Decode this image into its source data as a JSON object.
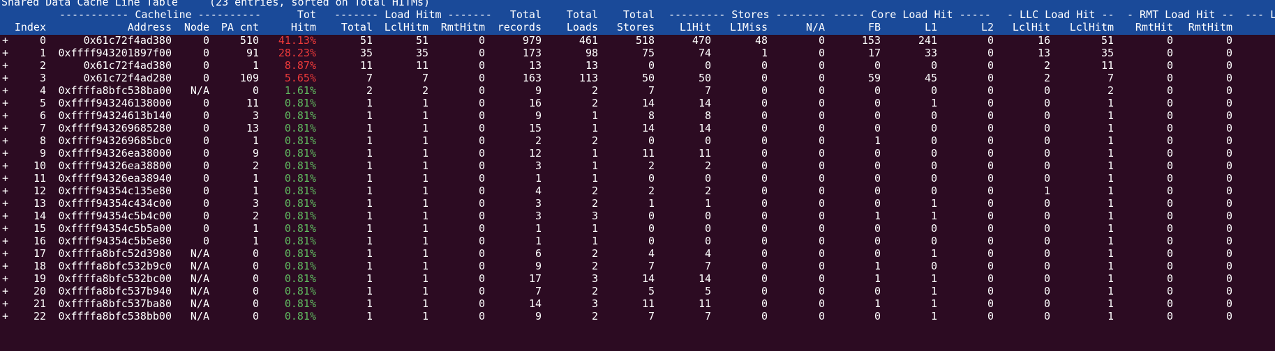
{
  "title": "Shared Data Cache Line Table     (23 entries, sorted on Total HITMs)",
  "group_headers": [
    {
      "id": "cacheline",
      "label": "----------- Cacheline ----------"
    },
    {
      "id": "tot",
      "label": "Tot"
    },
    {
      "id": "loadhitm",
      "label": "------- Load Hitm -------"
    },
    {
      "id": "total_records_top",
      "label": "Total"
    },
    {
      "id": "total_loads_top",
      "label": "Total"
    },
    {
      "id": "total_stores_top",
      "label": "Total"
    },
    {
      "id": "stores",
      "label": "--------- Stores --------"
    },
    {
      "id": "coreload",
      "label": "----- Core Load Hit -----"
    },
    {
      "id": "llcload",
      "label": "- LLC Load Hit --"
    },
    {
      "id": "rmtload",
      "label": "- RMT Load Hit --"
    },
    {
      "id": "lastcut",
      "label": "--- L"
    }
  ],
  "columns": [
    {
      "key": "expand",
      "label": ""
    },
    {
      "key": "index",
      "label": "Index"
    },
    {
      "key": "address",
      "label": "Address"
    },
    {
      "key": "node",
      "label": "Node"
    },
    {
      "key": "pacnt",
      "label": "PA cnt"
    },
    {
      "key": "hitm",
      "label": "Hitm"
    },
    {
      "key": "lh_total",
      "label": "Total"
    },
    {
      "key": "lh_lcl",
      "label": "LclHitm"
    },
    {
      "key": "lh_rmt",
      "label": "RmtHitm"
    },
    {
      "key": "records",
      "label": "records"
    },
    {
      "key": "loads",
      "label": "Loads"
    },
    {
      "key": "stores_total",
      "label": "Stores"
    },
    {
      "key": "l1hit",
      "label": "L1Hit"
    },
    {
      "key": "l1miss",
      "label": "L1Miss"
    },
    {
      "key": "na",
      "label": "N/A"
    },
    {
      "key": "fb",
      "label": "FB"
    },
    {
      "key": "l1",
      "label": "L1"
    },
    {
      "key": "l2",
      "label": "L2"
    },
    {
      "key": "llc_lclhit",
      "label": "LclHit"
    },
    {
      "key": "llc_lclhitm",
      "label": "LclHitm"
    },
    {
      "key": "rmt_rmthit",
      "label": "RmtHit"
    },
    {
      "key": "rmt_rmthitm",
      "label": "RmtHitm"
    }
  ],
  "rows": [
    {
      "expand": "+",
      "index": "0",
      "address": "0x61c72f4ad380",
      "node": "0",
      "pacnt": "510",
      "hitm": "41.13%",
      "hitm_color": "red",
      "lh_total": "51",
      "lh_lcl": "51",
      "lh_rmt": "0",
      "records": "979",
      "loads": "461",
      "stores_total": "518",
      "l1hit": "470",
      "l1miss": "48",
      "na": "0",
      "fb": "153",
      "l1": "241",
      "l2": "0",
      "llc_lclhit": "16",
      "llc_lclhitm": "51",
      "rmt_rmthit": "0",
      "rmt_rmthitm": "0"
    },
    {
      "expand": "+",
      "index": "1",
      "address": "0xffff943201897f00",
      "node": "0",
      "pacnt": "91",
      "hitm": "28.23%",
      "hitm_color": "red",
      "lh_total": "35",
      "lh_lcl": "35",
      "lh_rmt": "0",
      "records": "173",
      "loads": "98",
      "stores_total": "75",
      "l1hit": "74",
      "l1miss": "1",
      "na": "0",
      "fb": "17",
      "l1": "33",
      "l2": "0",
      "llc_lclhit": "13",
      "llc_lclhitm": "35",
      "rmt_rmthit": "0",
      "rmt_rmthitm": "0"
    },
    {
      "expand": "+",
      "index": "2",
      "address": "0x61c72f4ad380",
      "node": "0",
      "pacnt": "1",
      "hitm": "8.87%",
      "hitm_color": "red",
      "lh_total": "11",
      "lh_lcl": "11",
      "lh_rmt": "0",
      "records": "13",
      "loads": "13",
      "stores_total": "0",
      "l1hit": "0",
      "l1miss": "0",
      "na": "0",
      "fb": "0",
      "l1": "0",
      "l2": "0",
      "llc_lclhit": "2",
      "llc_lclhitm": "11",
      "rmt_rmthit": "0",
      "rmt_rmthitm": "0"
    },
    {
      "expand": "+",
      "index": "3",
      "address": "0x61c72f4ad280",
      "node": "0",
      "pacnt": "109",
      "hitm": "5.65%",
      "hitm_color": "red",
      "lh_total": "7",
      "lh_lcl": "7",
      "lh_rmt": "0",
      "records": "163",
      "loads": "113",
      "stores_total": "50",
      "l1hit": "50",
      "l1miss": "0",
      "na": "0",
      "fb": "59",
      "l1": "45",
      "l2": "0",
      "llc_lclhit": "2",
      "llc_lclhitm": "7",
      "rmt_rmthit": "0",
      "rmt_rmthitm": "0"
    },
    {
      "expand": "+",
      "index": "4",
      "address": "0xffffa8bfc538ba00",
      "node": "N/A",
      "pacnt": "0",
      "hitm": "1.61%",
      "hitm_color": "green",
      "lh_total": "2",
      "lh_lcl": "2",
      "lh_rmt": "0",
      "records": "9",
      "loads": "2",
      "stores_total": "7",
      "l1hit": "7",
      "l1miss": "0",
      "na": "0",
      "fb": "0",
      "l1": "0",
      "l2": "0",
      "llc_lclhit": "0",
      "llc_lclhitm": "2",
      "rmt_rmthit": "0",
      "rmt_rmthitm": "0"
    },
    {
      "expand": "+",
      "index": "5",
      "address": "0xffff943246138000",
      "node": "0",
      "pacnt": "11",
      "hitm": "0.81%",
      "hitm_color": "green",
      "lh_total": "1",
      "lh_lcl": "1",
      "lh_rmt": "0",
      "records": "16",
      "loads": "2",
      "stores_total": "14",
      "l1hit": "14",
      "l1miss": "0",
      "na": "0",
      "fb": "0",
      "l1": "1",
      "l2": "0",
      "llc_lclhit": "0",
      "llc_lclhitm": "1",
      "rmt_rmthit": "0",
      "rmt_rmthitm": "0"
    },
    {
      "expand": "+",
      "index": "6",
      "address": "0xffff94324613b140",
      "node": "0",
      "pacnt": "3",
      "hitm": "0.81%",
      "hitm_color": "green",
      "lh_total": "1",
      "lh_lcl": "1",
      "lh_rmt": "0",
      "records": "9",
      "loads": "1",
      "stores_total": "8",
      "l1hit": "8",
      "l1miss": "0",
      "na": "0",
      "fb": "0",
      "l1": "0",
      "l2": "0",
      "llc_lclhit": "0",
      "llc_lclhitm": "1",
      "rmt_rmthit": "0",
      "rmt_rmthitm": "0"
    },
    {
      "expand": "+",
      "index": "7",
      "address": "0xffff943269685280",
      "node": "0",
      "pacnt": "13",
      "hitm": "0.81%",
      "hitm_color": "green",
      "lh_total": "1",
      "lh_lcl": "1",
      "lh_rmt": "0",
      "records": "15",
      "loads": "1",
      "stores_total": "14",
      "l1hit": "14",
      "l1miss": "0",
      "na": "0",
      "fb": "0",
      "l1": "0",
      "l2": "0",
      "llc_lclhit": "0",
      "llc_lclhitm": "1",
      "rmt_rmthit": "0",
      "rmt_rmthitm": "0"
    },
    {
      "expand": "+",
      "index": "8",
      "address": "0xffff943269685bc0",
      "node": "0",
      "pacnt": "1",
      "hitm": "0.81%",
      "hitm_color": "green",
      "lh_total": "1",
      "lh_lcl": "1",
      "lh_rmt": "0",
      "records": "2",
      "loads": "2",
      "stores_total": "0",
      "l1hit": "0",
      "l1miss": "0",
      "na": "0",
      "fb": "1",
      "l1": "0",
      "l2": "0",
      "llc_lclhit": "0",
      "llc_lclhitm": "1",
      "rmt_rmthit": "0",
      "rmt_rmthitm": "0"
    },
    {
      "expand": "+",
      "index": "9",
      "address": "0xffff94326ea38000",
      "node": "0",
      "pacnt": "9",
      "hitm": "0.81%",
      "hitm_color": "green",
      "lh_total": "1",
      "lh_lcl": "1",
      "lh_rmt": "0",
      "records": "12",
      "loads": "1",
      "stores_total": "11",
      "l1hit": "11",
      "l1miss": "0",
      "na": "0",
      "fb": "0",
      "l1": "0",
      "l2": "0",
      "llc_lclhit": "0",
      "llc_lclhitm": "1",
      "rmt_rmthit": "0",
      "rmt_rmthitm": "0"
    },
    {
      "expand": "+",
      "index": "10",
      "address": "0xffff94326ea38800",
      "node": "0",
      "pacnt": "2",
      "hitm": "0.81%",
      "hitm_color": "green",
      "lh_total": "1",
      "lh_lcl": "1",
      "lh_rmt": "0",
      "records": "3",
      "loads": "1",
      "stores_total": "2",
      "l1hit": "2",
      "l1miss": "0",
      "na": "0",
      "fb": "0",
      "l1": "0",
      "l2": "0",
      "llc_lclhit": "0",
      "llc_lclhitm": "1",
      "rmt_rmthit": "0",
      "rmt_rmthitm": "0"
    },
    {
      "expand": "+",
      "index": "11",
      "address": "0xffff94326ea38940",
      "node": "0",
      "pacnt": "1",
      "hitm": "0.81%",
      "hitm_color": "green",
      "lh_total": "1",
      "lh_lcl": "1",
      "lh_rmt": "0",
      "records": "1",
      "loads": "1",
      "stores_total": "0",
      "l1hit": "0",
      "l1miss": "0",
      "na": "0",
      "fb": "0",
      "l1": "0",
      "l2": "0",
      "llc_lclhit": "0",
      "llc_lclhitm": "1",
      "rmt_rmthit": "0",
      "rmt_rmthitm": "0"
    },
    {
      "expand": "+",
      "index": "12",
      "address": "0xffff94354c135e80",
      "node": "0",
      "pacnt": "1",
      "hitm": "0.81%",
      "hitm_color": "green",
      "lh_total": "1",
      "lh_lcl": "1",
      "lh_rmt": "0",
      "records": "4",
      "loads": "2",
      "stores_total": "2",
      "l1hit": "2",
      "l1miss": "0",
      "na": "0",
      "fb": "0",
      "l1": "0",
      "l2": "0",
      "llc_lclhit": "1",
      "llc_lclhitm": "1",
      "rmt_rmthit": "0",
      "rmt_rmthitm": "0"
    },
    {
      "expand": "+",
      "index": "13",
      "address": "0xffff94354c434c00",
      "node": "0",
      "pacnt": "3",
      "hitm": "0.81%",
      "hitm_color": "green",
      "lh_total": "1",
      "lh_lcl": "1",
      "lh_rmt": "0",
      "records": "3",
      "loads": "2",
      "stores_total": "1",
      "l1hit": "1",
      "l1miss": "0",
      "na": "0",
      "fb": "0",
      "l1": "1",
      "l2": "0",
      "llc_lclhit": "0",
      "llc_lclhitm": "1",
      "rmt_rmthit": "0",
      "rmt_rmthitm": "0"
    },
    {
      "expand": "+",
      "index": "14",
      "address": "0xffff94354c5b4c00",
      "node": "0",
      "pacnt": "2",
      "hitm": "0.81%",
      "hitm_color": "green",
      "lh_total": "1",
      "lh_lcl": "1",
      "lh_rmt": "0",
      "records": "3",
      "loads": "3",
      "stores_total": "0",
      "l1hit": "0",
      "l1miss": "0",
      "na": "0",
      "fb": "1",
      "l1": "1",
      "l2": "0",
      "llc_lclhit": "0",
      "llc_lclhitm": "1",
      "rmt_rmthit": "0",
      "rmt_rmthitm": "0"
    },
    {
      "expand": "+",
      "index": "15",
      "address": "0xffff94354c5b5a00",
      "node": "0",
      "pacnt": "1",
      "hitm": "0.81%",
      "hitm_color": "green",
      "lh_total": "1",
      "lh_lcl": "1",
      "lh_rmt": "0",
      "records": "1",
      "loads": "1",
      "stores_total": "0",
      "l1hit": "0",
      "l1miss": "0",
      "na": "0",
      "fb": "0",
      "l1": "0",
      "l2": "0",
      "llc_lclhit": "0",
      "llc_lclhitm": "1",
      "rmt_rmthit": "0",
      "rmt_rmthitm": "0"
    },
    {
      "expand": "+",
      "index": "16",
      "address": "0xffff94354c5b5e80",
      "node": "0",
      "pacnt": "1",
      "hitm": "0.81%",
      "hitm_color": "green",
      "lh_total": "1",
      "lh_lcl": "1",
      "lh_rmt": "0",
      "records": "1",
      "loads": "1",
      "stores_total": "0",
      "l1hit": "0",
      "l1miss": "0",
      "na": "0",
      "fb": "0",
      "l1": "0",
      "l2": "0",
      "llc_lclhit": "0",
      "llc_lclhitm": "1",
      "rmt_rmthit": "0",
      "rmt_rmthitm": "0"
    },
    {
      "expand": "+",
      "index": "17",
      "address": "0xffffa8bfc52d3980",
      "node": "N/A",
      "pacnt": "0",
      "hitm": "0.81%",
      "hitm_color": "green",
      "lh_total": "1",
      "lh_lcl": "1",
      "lh_rmt": "0",
      "records": "6",
      "loads": "2",
      "stores_total": "4",
      "l1hit": "4",
      "l1miss": "0",
      "na": "0",
      "fb": "0",
      "l1": "1",
      "l2": "0",
      "llc_lclhit": "0",
      "llc_lclhitm": "1",
      "rmt_rmthit": "0",
      "rmt_rmthitm": "0"
    },
    {
      "expand": "+",
      "index": "18",
      "address": "0xffffa8bfc532b9c0",
      "node": "N/A",
      "pacnt": "0",
      "hitm": "0.81%",
      "hitm_color": "green",
      "lh_total": "1",
      "lh_lcl": "1",
      "lh_rmt": "0",
      "records": "9",
      "loads": "2",
      "stores_total": "7",
      "l1hit": "7",
      "l1miss": "0",
      "na": "0",
      "fb": "1",
      "l1": "0",
      "l2": "0",
      "llc_lclhit": "0",
      "llc_lclhitm": "1",
      "rmt_rmthit": "0",
      "rmt_rmthitm": "0"
    },
    {
      "expand": "+",
      "index": "19",
      "address": "0xffffa8bfc532bc00",
      "node": "N/A",
      "pacnt": "0",
      "hitm": "0.81%",
      "hitm_color": "green",
      "lh_total": "1",
      "lh_lcl": "1",
      "lh_rmt": "0",
      "records": "17",
      "loads": "3",
      "stores_total": "14",
      "l1hit": "14",
      "l1miss": "0",
      "na": "0",
      "fb": "1",
      "l1": "1",
      "l2": "0",
      "llc_lclhit": "0",
      "llc_lclhitm": "1",
      "rmt_rmthit": "0",
      "rmt_rmthitm": "0"
    },
    {
      "expand": "+",
      "index": "20",
      "address": "0xffffa8bfc537b940",
      "node": "N/A",
      "pacnt": "0",
      "hitm": "0.81%",
      "hitm_color": "green",
      "lh_total": "1",
      "lh_lcl": "1",
      "lh_rmt": "0",
      "records": "7",
      "loads": "2",
      "stores_total": "5",
      "l1hit": "5",
      "l1miss": "0",
      "na": "0",
      "fb": "0",
      "l1": "1",
      "l2": "0",
      "llc_lclhit": "0",
      "llc_lclhitm": "1",
      "rmt_rmthit": "0",
      "rmt_rmthitm": "0"
    },
    {
      "expand": "+",
      "index": "21",
      "address": "0xffffa8bfc537ba80",
      "node": "N/A",
      "pacnt": "0",
      "hitm": "0.81%",
      "hitm_color": "green",
      "lh_total": "1",
      "lh_lcl": "1",
      "lh_rmt": "0",
      "records": "14",
      "loads": "3",
      "stores_total": "11",
      "l1hit": "11",
      "l1miss": "0",
      "na": "0",
      "fb": "1",
      "l1": "1",
      "l2": "0",
      "llc_lclhit": "0",
      "llc_lclhitm": "1",
      "rmt_rmthit": "0",
      "rmt_rmthitm": "0"
    },
    {
      "expand": "+",
      "index": "22",
      "address": "0xffffa8bfc538bb00",
      "node": "N/A",
      "pacnt": "0",
      "hitm": "0.81%",
      "hitm_color": "green",
      "lh_total": "1",
      "lh_lcl": "1",
      "lh_rmt": "0",
      "records": "9",
      "loads": "2",
      "stores_total": "7",
      "l1hit": "7",
      "l1miss": "0",
      "na": "0",
      "fb": "0",
      "l1": "1",
      "l2": "0",
      "llc_lclhit": "0",
      "llc_lclhitm": "1",
      "rmt_rmthit": "0",
      "rmt_rmthitm": "0"
    }
  ],
  "colors": {
    "terminal_bg": "#2c0b22",
    "header_bg": "#1a4a99",
    "text": "#ffffff",
    "hitm_red": "#ef3a3a",
    "hitm_green": "#5fb85f"
  }
}
